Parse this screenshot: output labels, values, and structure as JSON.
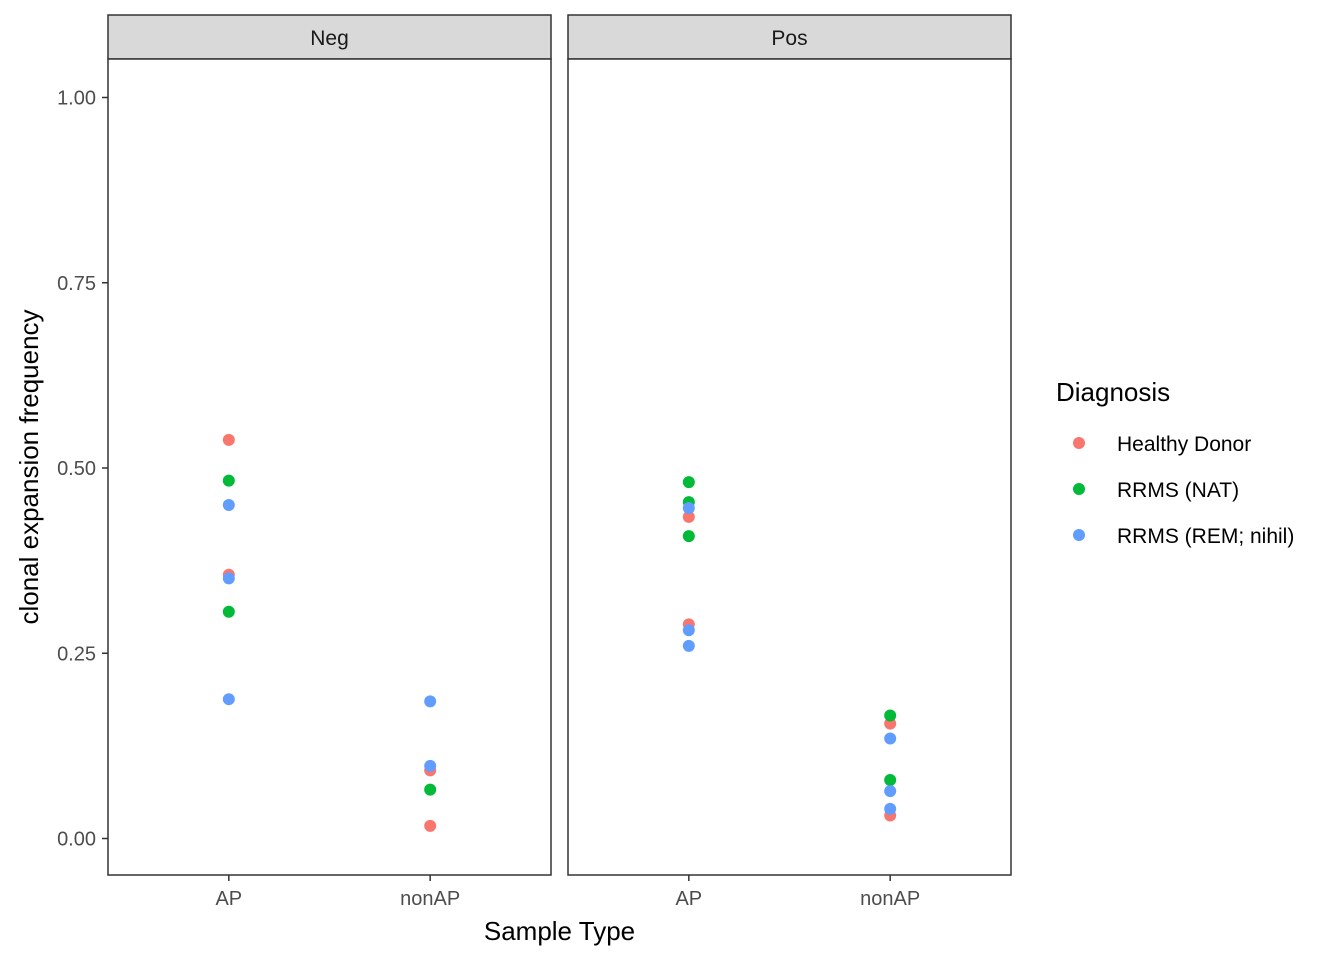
{
  "chart_data": {
    "type": "scatter",
    "facet_variable": "panel",
    "panels": [
      "Neg",
      "Pos"
    ],
    "categories": [
      "AP",
      "nonAP"
    ],
    "xlabel": "Sample Type",
    "ylabel": "clonal expansion frequency",
    "ylim": [
      -0.05,
      1.05
    ],
    "yticks": [
      "0.00",
      "0.25",
      "0.50",
      "0.75",
      "1.00"
    ],
    "ytick_values": [
      0,
      0.25,
      0.5,
      0.75,
      1.0
    ],
    "grid": false,
    "legend": {
      "title": "Diagnosis",
      "position": "right",
      "entries": [
        "Healthy Donor",
        "RRMS (NAT)",
        "RRMS (REM; nihil)"
      ]
    },
    "colors": {
      "Healthy Donor": "#F8766D",
      "RRMS (NAT)": "#00BA38",
      "RRMS (REM; nihil)": "#619CFF"
    },
    "series": [
      {
        "name": "Healthy Donor",
        "points": [
          {
            "panel": "Neg",
            "x": "AP",
            "y": 0.538
          },
          {
            "panel": "Neg",
            "x": "AP",
            "y": 0.356
          },
          {
            "panel": "Neg",
            "x": "nonAP",
            "y": 0.092
          },
          {
            "panel": "Neg",
            "x": "nonAP",
            "y": 0.017
          },
          {
            "panel": "Pos",
            "x": "AP",
            "y": 0.434
          },
          {
            "panel": "Pos",
            "x": "AP",
            "y": 0.289
          },
          {
            "panel": "Pos",
            "x": "nonAP",
            "y": 0.155
          },
          {
            "panel": "Pos",
            "x": "nonAP",
            "y": 0.031
          }
        ]
      },
      {
        "name": "RRMS (NAT)",
        "points": [
          {
            "panel": "Neg",
            "x": "AP",
            "y": 0.483
          },
          {
            "panel": "Neg",
            "x": "AP",
            "y": 0.306
          },
          {
            "panel": "Neg",
            "x": "nonAP",
            "y": 0.066
          },
          {
            "panel": "Pos",
            "x": "AP",
            "y": 0.481
          },
          {
            "panel": "Pos",
            "x": "AP",
            "y": 0.454
          },
          {
            "panel": "Pos",
            "x": "AP",
            "y": 0.408
          },
          {
            "panel": "Pos",
            "x": "nonAP",
            "y": 0.166
          },
          {
            "panel": "Pos",
            "x": "nonAP",
            "y": 0.079
          }
        ]
      },
      {
        "name": "RRMS (REM; nihil)",
        "points": [
          {
            "panel": "Neg",
            "x": "AP",
            "y": 0.45
          },
          {
            "panel": "Neg",
            "x": "AP",
            "y": 0.351
          },
          {
            "panel": "Neg",
            "x": "AP",
            "y": 0.188
          },
          {
            "panel": "Neg",
            "x": "nonAP",
            "y": 0.185
          },
          {
            "panel": "Neg",
            "x": "nonAP",
            "y": 0.098
          },
          {
            "panel": "Pos",
            "x": "AP",
            "y": 0.446
          },
          {
            "panel": "Pos",
            "x": "AP",
            "y": 0.281
          },
          {
            "panel": "Pos",
            "x": "AP",
            "y": 0.26
          },
          {
            "panel": "Pos",
            "x": "nonAP",
            "y": 0.135
          },
          {
            "panel": "Pos",
            "x": "nonAP",
            "y": 0.064
          },
          {
            "panel": "Pos",
            "x": "nonAP",
            "y": 0.04
          }
        ]
      }
    ]
  }
}
